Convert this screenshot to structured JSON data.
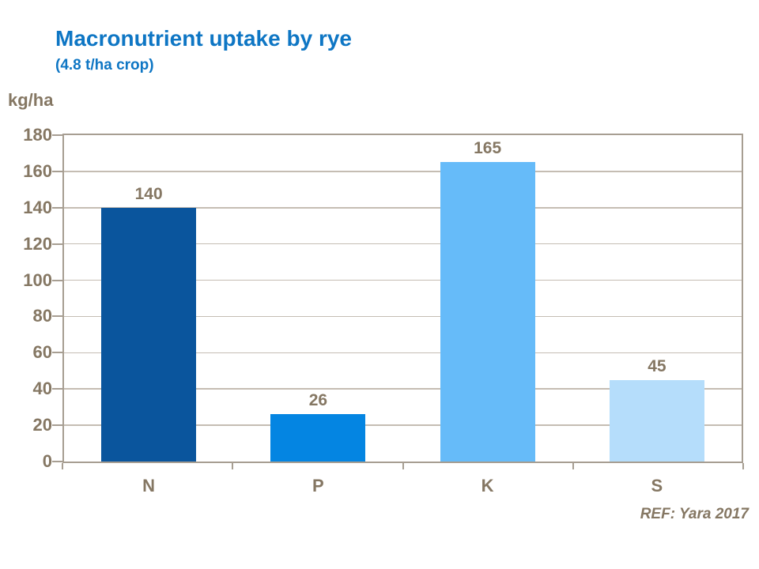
{
  "header": {
    "title": "Macronutrient uptake by rye",
    "subtitle": "(4.8 t/ha crop)"
  },
  "footer": {
    "ref_text": "REF: Yara 2017"
  },
  "colors": {
    "title_blue": "#0E76C4",
    "text_brown": "#857763",
    "axis_frame": "#A79E92",
    "gridline": "#C5BDB3"
  },
  "chart_data": {
    "type": "bar",
    "title": "Macronutrient uptake by rye",
    "subtitle": "(4.8 t/ha crop)",
    "unit_label": "kg/ha",
    "categories": [
      "N",
      "P",
      "K",
      "S"
    ],
    "values": [
      140,
      26,
      165,
      45
    ],
    "data_labels": [
      "140",
      "26",
      "165",
      "45"
    ],
    "bar_colors": [
      "#0A559D",
      "#0485E2",
      "#66BBF9",
      "#B5DDFB"
    ],
    "xlabel": "",
    "ylabel": "kg/ha",
    "ylim": [
      0,
      180
    ],
    "ytick_step": 20,
    "yticks": [
      0,
      20,
      40,
      60,
      80,
      100,
      120,
      140,
      160,
      180
    ],
    "grid": true,
    "legend": "none",
    "annotation": "REF: Yara 2017"
  }
}
